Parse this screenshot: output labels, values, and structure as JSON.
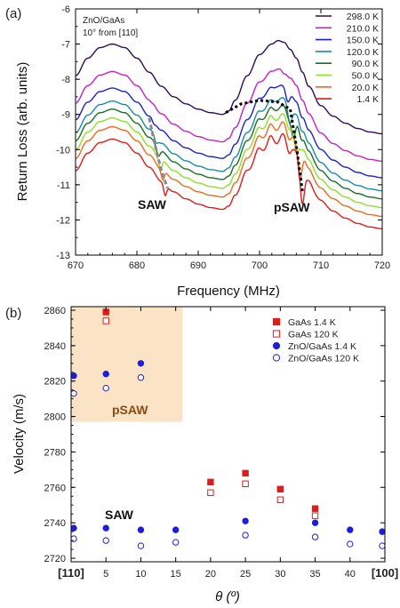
{
  "chart_data": [
    {
      "type": "line",
      "panel_label": "(a)",
      "annotation": [
        "ZnO/GaAs",
        "10° from [110]"
      ],
      "xlabel": "Frequency (MHz)",
      "ylabel": "Return Loss (arb. units)",
      "xlim": [
        670,
        720
      ],
      "ylim": [
        -13,
        -6
      ],
      "x_ticks": [
        "670",
        "680",
        "690",
        "700",
        "710",
        "720"
      ],
      "y_ticks": [
        "-13",
        "-12",
        "-11",
        "-10",
        "-9",
        "-8",
        "-7",
        "-6"
      ],
      "labels": {
        "saw": "SAW",
        "psaw": "pSAW"
      },
      "series": [
        {
          "name": "298.0 K",
          "color": "#2d0d55",
          "offset": 0.0
        },
        {
          "name": "210.0 K",
          "color": "#c51fc8",
          "offset": -0.78
        },
        {
          "name": "150.0 K",
          "color": "#1c22c9",
          "offset": -1.25
        },
        {
          "name": "120.0 K",
          "color": "#1c8aa8",
          "offset": -1.62
        },
        {
          "name": "90.0 K",
          "color": "#1a6e2a",
          "offset": -1.85
        },
        {
          "name": "50.0 K",
          "color": "#8fe02a",
          "offset": -2.1
        },
        {
          "name": "20.0 K",
          "color": "#f06a1c",
          "offset": -2.35
        },
        {
          "name": "1.4 K",
          "color": "#e01b1b",
          "offset": -2.7
        }
      ],
      "base_curve": {
        "x": [
          670,
          672,
          674,
          676,
          678,
          680,
          682,
          684,
          686,
          688,
          690,
          692,
          694,
          695,
          696,
          698,
          700,
          702,
          703,
          704,
          705,
          706,
          707,
          708,
          710,
          712,
          714,
          716,
          718,
          720
        ],
        "y": [
          -7.9,
          -7.4,
          -7.1,
          -7.0,
          -7.1,
          -7.4,
          -7.8,
          -8.2,
          -8.5,
          -8.7,
          -8.85,
          -8.95,
          -9.0,
          -8.9,
          -8.6,
          -7.9,
          -7.3,
          -7.0,
          -6.9,
          -6.95,
          -7.15,
          -7.4,
          -7.8,
          -8.2,
          -8.75,
          -9.05,
          -9.25,
          -9.4,
          -9.5,
          -9.55
        ]
      },
      "guide_lines": {
        "saw": {
          "x": [
            682,
            683,
            684,
            685
          ],
          "y": [
            -9.1,
            -9.9,
            -10.6,
            -11.1
          ],
          "color": "#888888"
        },
        "psaw": {
          "x": [
            694.5,
            697,
            700,
            703,
            705,
            706,
            707
          ],
          "y": [
            -8.95,
            -8.7,
            -8.6,
            -8.65,
            -8.85,
            -9.9,
            -11.2
          ],
          "color": "#000000"
        }
      }
    },
    {
      "type": "scatter",
      "panel_label": "(b)",
      "xlabel": "θ (º)",
      "ylabel": "Velocity (m/s)",
      "xlim": [
        0,
        45
      ],
      "ylim": [
        2718,
        2862
      ],
      "x_ticks": [
        "[110]",
        "5",
        "10",
        "15",
        "20",
        "25",
        "30",
        "35",
        "40",
        "[100]"
      ],
      "x_tick_values": [
        0,
        5,
        10,
        15,
        20,
        25,
        30,
        35,
        40,
        45
      ],
      "y_ticks": [
        "2720",
        "2740",
        "2760",
        "2780",
        "2800",
        "2820",
        "2840",
        "2860"
      ],
      "y_tick_values": [
        2720,
        2740,
        2760,
        2780,
        2800,
        2820,
        2840,
        2860
      ],
      "labels": {
        "psaw": "pSAW",
        "saw": "SAW"
      },
      "psaw_region": {
        "x": [
          0,
          16
        ],
        "y": [
          2797,
          2862
        ],
        "color": "#fbe3c6"
      },
      "series": [
        {
          "name": "GaAs 1.4 K",
          "marker": "square-filled",
          "color": "#e01b1b",
          "x": [
            5,
            20,
            25,
            30,
            35
          ],
          "y": [
            2859,
            2763,
            2768,
            2759,
            2748
          ]
        },
        {
          "name": "GaAs 120 K",
          "marker": "square-open",
          "color": "#e01b1b",
          "x": [
            5,
            20,
            25,
            30,
            35
          ],
          "y": [
            2854,
            2757,
            2762,
            2753,
            2744
          ]
        },
        {
          "name": "ZnO/GaAs 1.4 K",
          "marker": "circle-filled",
          "color": "#1d1ddb",
          "x": [
            0,
            5,
            10,
            0,
            5,
            10,
            15,
            25,
            35,
            40,
            45
          ],
          "y": [
            2823,
            2824,
            2830,
            2737,
            2737,
            2736,
            2736,
            2741,
            2740,
            2736,
            2735
          ]
        },
        {
          "name": "ZnO/GaAs 120 K",
          "marker": "circle-open",
          "color": "#1d1ddb",
          "x": [
            0,
            5,
            10,
            0,
            5,
            10,
            15,
            25,
            35,
            40,
            45
          ],
          "y": [
            2813,
            2816,
            2822,
            2731,
            2730,
            2727,
            2729,
            2733,
            2732,
            2728,
            2727
          ]
        }
      ]
    }
  ]
}
